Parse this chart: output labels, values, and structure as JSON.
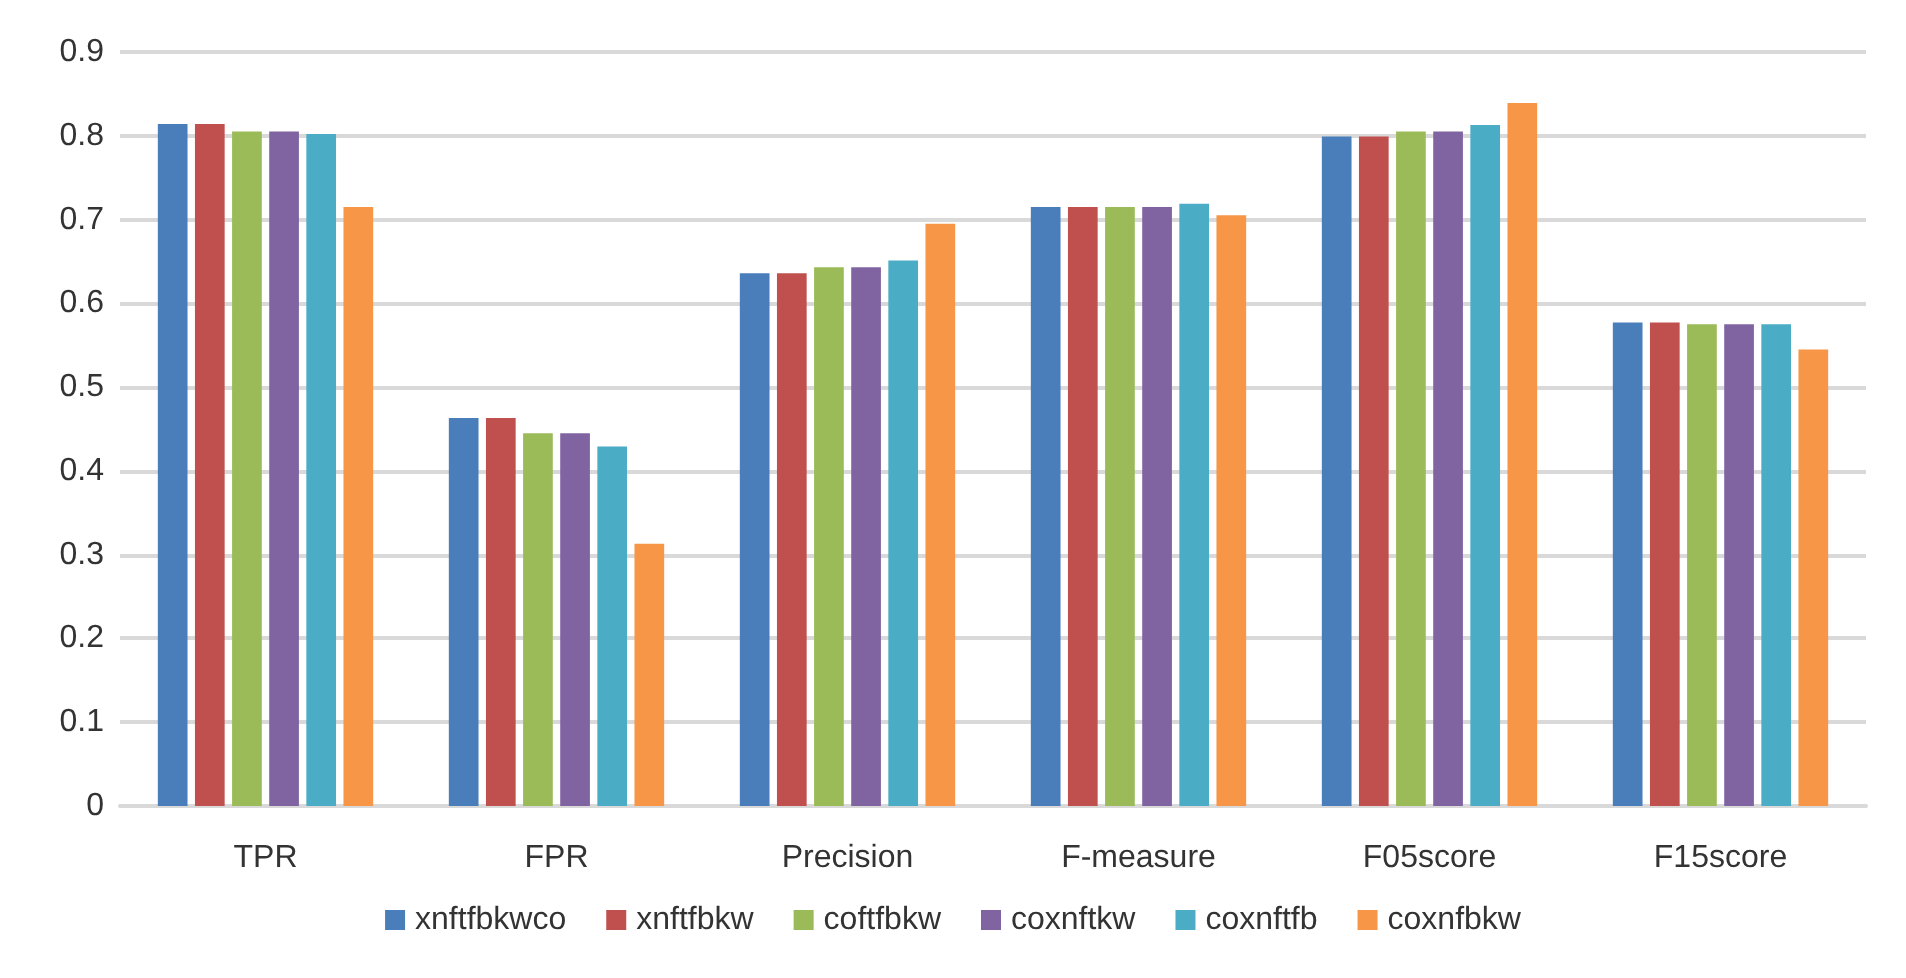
{
  "chart_data": {
    "type": "bar",
    "categories": [
      "TPR",
      "FPR",
      "Precision",
      "F-measure",
      "F05score",
      "F15score"
    ],
    "series": [
      {
        "name": "xnftfbkwco",
        "color": "#4a7ebb",
        "values": [
          0.814,
          0.463,
          0.636,
          0.715,
          0.799,
          0.577
        ]
      },
      {
        "name": "xnftfbkw",
        "color": "#c0504d",
        "values": [
          0.814,
          0.463,
          0.636,
          0.715,
          0.799,
          0.577
        ]
      },
      {
        "name": "coftfbkw",
        "color": "#9bbb59",
        "values": [
          0.805,
          0.445,
          0.643,
          0.715,
          0.805,
          0.575
        ]
      },
      {
        "name": "coxnftkw",
        "color": "#8064a2",
        "values": [
          0.805,
          0.445,
          0.643,
          0.715,
          0.805,
          0.575
        ]
      },
      {
        "name": "coxnftfb",
        "color": "#4bacc6",
        "values": [
          0.802,
          0.429,
          0.651,
          0.719,
          0.813,
          0.575
        ]
      },
      {
        "name": "coxnfbkw",
        "color": "#f79646",
        "values": [
          0.715,
          0.313,
          0.695,
          0.705,
          0.839,
          0.545
        ]
      }
    ],
    "ylim": [
      0,
      0.9
    ],
    "yticks": [
      0,
      0.1,
      0.2,
      0.3,
      0.4,
      0.5,
      0.6,
      0.7,
      0.8,
      0.9
    ],
    "grid": "y",
    "legend": "bottom"
  }
}
